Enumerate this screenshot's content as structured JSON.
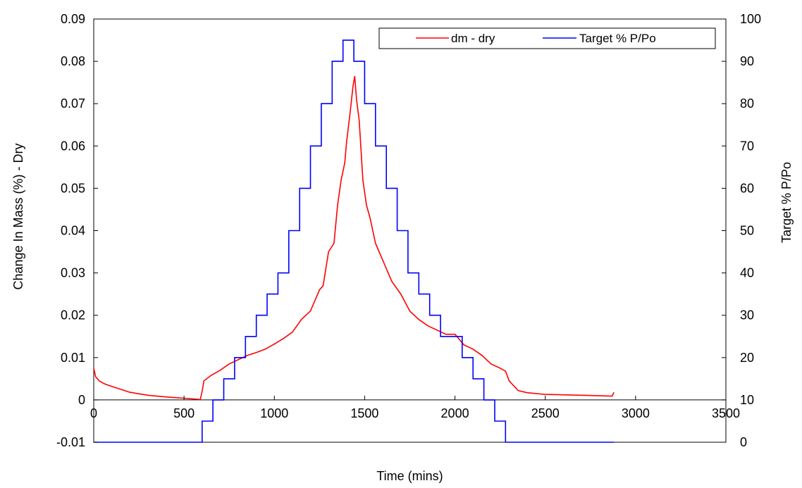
{
  "chart_data": {
    "type": "line",
    "title": "",
    "xlabel": "Time (mins)",
    "ylabel_left": "Change In Mass (%) - Dry",
    "ylabel_right": "Target  % P/Po",
    "xlim": [
      0,
      3500
    ],
    "ylim_left": [
      -0.01,
      0.09
    ],
    "ylim_right": [
      0,
      100
    ],
    "x_ticks": [
      "0",
      "500",
      "1000",
      "1500",
      "2000",
      "2500",
      "3000",
      "3500"
    ],
    "y_left_ticks": [
      "-0.01",
      "0",
      "0.01",
      "0.02",
      "0.03",
      "0.04",
      "0.05",
      "0.06",
      "0.07",
      "0.08",
      "0.09"
    ],
    "y_right_ticks": [
      "0",
      "10",
      "20",
      "30",
      "40",
      "50",
      "60",
      "70",
      "80",
      "90",
      "100"
    ],
    "grid": false,
    "legend_position": "top-right",
    "series": [
      {
        "name": "dm - dry",
        "axis": "left",
        "color": "#ff0000",
        "x": [
          0,
          10,
          30,
          60,
          100,
          150,
          200,
          300,
          400,
          500,
          590,
          600,
          610,
          650,
          700,
          750,
          800,
          850,
          900,
          950,
          1000,
          1050,
          1100,
          1150,
          1200,
          1250,
          1270,
          1300,
          1330,
          1350,
          1370,
          1390,
          1400,
          1420,
          1435,
          1445,
          1455,
          1470,
          1490,
          1510,
          1530,
          1560,
          1600,
          1650,
          1700,
          1750,
          1800,
          1850,
          1900,
          1950,
          2000,
          2050,
          2100,
          2150,
          2200,
          2250,
          2280,
          2300,
          2350,
          2400,
          2500,
          2600,
          2700,
          2800,
          2870,
          2880
        ],
        "y": [
          0.0075,
          0.0055,
          0.0045,
          0.0038,
          0.0032,
          0.0025,
          0.0018,
          0.0011,
          0.0007,
          0.0004,
          0.0001,
          0.002,
          0.0045,
          0.0058,
          0.007,
          0.0085,
          0.0095,
          0.0105,
          0.0112,
          0.012,
          0.0132,
          0.0145,
          0.016,
          0.019,
          0.021,
          0.026,
          0.027,
          0.035,
          0.037,
          0.046,
          0.052,
          0.056,
          0.061,
          0.068,
          0.074,
          0.0765,
          0.071,
          0.066,
          0.052,
          0.046,
          0.043,
          0.037,
          0.033,
          0.028,
          0.025,
          0.021,
          0.019,
          0.0175,
          0.0165,
          0.0155,
          0.0155,
          0.013,
          0.012,
          0.0105,
          0.0085,
          0.0075,
          0.0068,
          0.0045,
          0.0022,
          0.0017,
          0.0013,
          0.0012,
          0.0011,
          0.001,
          0.0009,
          0.0018
        ]
      },
      {
        "name": "Target % P/Po",
        "axis": "right",
        "color": "#0000ff",
        "x": [
          0,
          600,
          600,
          660,
          660,
          720,
          720,
          780,
          780,
          840,
          840,
          900,
          900,
          960,
          960,
          1020,
          1020,
          1080,
          1080,
          1140,
          1140,
          1200,
          1200,
          1260,
          1260,
          1320,
          1320,
          1380,
          1380,
          1440,
          1440,
          1500,
          1500,
          1560,
          1560,
          1620,
          1620,
          1680,
          1680,
          1740,
          1740,
          1800,
          1800,
          1860,
          1860,
          1920,
          1920,
          2040,
          2040,
          2100,
          2100,
          2160,
          2160,
          2220,
          2220,
          2280,
          2280,
          2880
        ],
        "y": [
          0,
          0,
          5,
          5,
          10,
          10,
          15,
          15,
          20,
          20,
          25,
          25,
          30,
          30,
          35,
          35,
          40,
          40,
          50,
          50,
          60,
          60,
          70,
          70,
          80,
          80,
          90,
          90,
          95,
          95,
          90,
          90,
          80,
          80,
          70,
          70,
          60,
          60,
          50,
          50,
          40,
          40,
          35,
          35,
          30,
          30,
          25,
          25,
          20,
          20,
          15,
          15,
          10,
          10,
          5,
          5,
          0,
          0
        ]
      }
    ]
  }
}
